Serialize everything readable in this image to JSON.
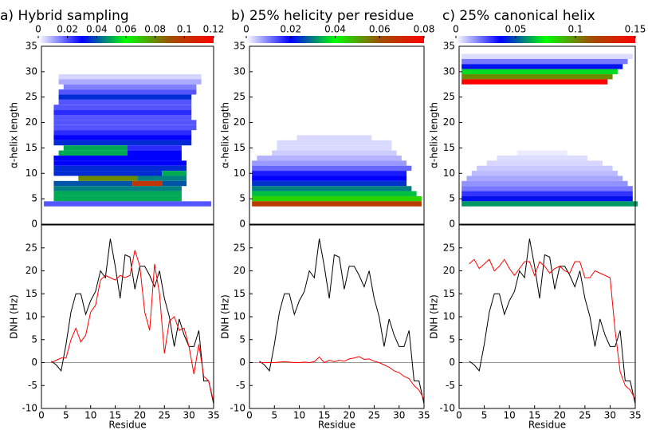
{
  "chart_data": [
    {
      "type": "heatmap",
      "title": "a)  Hybrid sampling",
      "ylabel": "α-helix length",
      "xlim": [
        0,
        35
      ],
      "ylim": [
        0,
        35
      ],
      "yticks": [
        0,
        5,
        10,
        15,
        20,
        25,
        30,
        35
      ],
      "clim": [
        0,
        0.12
      ],
      "cticks": [
        0,
        0.02,
        0.04,
        0.06,
        0.08,
        0.1,
        0.12
      ],
      "colormap": [
        "#ffffff",
        "#0000ff",
        "#00ff00",
        "#a05000",
        "#ff0000"
      ],
      "cells": [
        {
          "x": [
            4,
            32
          ],
          "y": 29,
          "value": 0.005
        },
        {
          "x": [
            4,
            32
          ],
          "y": 28,
          "value": 0.01
        },
        {
          "x": [
            5,
            31
          ],
          "y": 27,
          "value": 0.015
        },
        {
          "x": [
            4,
            31
          ],
          "y": 26,
          "value": 0.02
        },
        {
          "x": [
            4,
            30
          ],
          "y": 25,
          "value": 0.035
        },
        {
          "x": [
            4,
            30
          ],
          "y": 24,
          "value": 0.02
        },
        {
          "x": [
            3,
            30
          ],
          "y": 23,
          "value": 0.02
        },
        {
          "x": [
            3,
            30
          ],
          "y": 22,
          "value": 0.025
        },
        {
          "x": [
            3,
            30
          ],
          "y": 21,
          "value": 0.02
        },
        {
          "x": [
            3,
            31
          ],
          "y": 20,
          "value": 0.02
        },
        {
          "x": [
            3,
            31
          ],
          "y": 19,
          "value": 0.02
        },
        {
          "x": [
            3,
            30
          ],
          "y": 18,
          "value": 0.025
        },
        {
          "x": [
            3,
            30
          ],
          "y": 17,
          "value": 0.03
        },
        {
          "x": [
            3,
            30
          ],
          "y": 16,
          "value": 0.035
        },
        {
          "x": [
            5,
            17
          ],
          "y": 15,
          "value": 0.05
        },
        {
          "x": [
            18,
            28
          ],
          "y": 15,
          "value": 0.025
        },
        {
          "x": [
            4,
            17
          ],
          "y": 14,
          "value": 0.05
        },
        {
          "x": [
            18,
            28
          ],
          "y": 14,
          "value": 0.03
        },
        {
          "x": [
            3,
            28
          ],
          "y": 13,
          "value": 0.03
        },
        {
          "x": [
            3,
            29
          ],
          "y": 12,
          "value": 0.03
        },
        {
          "x": [
            3,
            29
          ],
          "y": 11,
          "value": 0.035
        },
        {
          "x": [
            3,
            24
          ],
          "y": 10,
          "value": 0.035
        },
        {
          "x": [
            25,
            29
          ],
          "y": 10,
          "value": 0.05
        },
        {
          "x": [
            8,
            19
          ],
          "y": 9,
          "value": 0.08
        },
        {
          "x": [
            20,
            29
          ],
          "y": 9,
          "value": 0.045
        },
        {
          "x": [
            3,
            18
          ],
          "y": 8,
          "value": 0.04
        },
        {
          "x": [
            19,
            24
          ],
          "y": 8,
          "value": 0.1
        },
        {
          "x": [
            25,
            29
          ],
          "y": 8,
          "value": 0.04
        },
        {
          "x": [
            3,
            28
          ],
          "y": 7,
          "value": 0.045
        },
        {
          "x": [
            3,
            28
          ],
          "y": 6,
          "value": 0.05
        },
        {
          "x": [
            3,
            28
          ],
          "y": 5,
          "value": 0.05
        },
        {
          "x": [
            1,
            34
          ],
          "y": 4,
          "value": 0.02
        }
      ]
    },
    {
      "type": "heatmap",
      "title": "b) 25% helicity per residue",
      "ylabel": "α-helix length",
      "xlim": [
        0,
        35
      ],
      "ylim": [
        0,
        35
      ],
      "yticks": [
        0,
        5,
        10,
        15,
        20,
        25,
        30,
        35
      ],
      "clim": [
        0,
        0.08
      ],
      "cticks": [
        0,
        0.02,
        0.04,
        0.06,
        0.08
      ],
      "colormap": [
        "#ffffff",
        "#0000ff",
        "#00ff00",
        "#a05000",
        "#ff0000"
      ],
      "cells": [
        {
          "x": [
            10,
            24
          ],
          "y": 17,
          "value": 0.003
        },
        {
          "x": [
            6,
            28
          ],
          "y": 16,
          "value": 0.003
        },
        {
          "x": [
            6,
            28
          ],
          "y": 15,
          "value": 0.003
        },
        {
          "x": [
            5,
            29
          ],
          "y": 14,
          "value": 0.004
        },
        {
          "x": [
            2,
            30
          ],
          "y": 13,
          "value": 0.006
        },
        {
          "x": [
            1,
            31
          ],
          "y": 12,
          "value": 0.008
        },
        {
          "x": [
            1,
            32
          ],
          "y": 11,
          "value": 0.012
        },
        {
          "x": [
            1,
            31
          ],
          "y": 10,
          "value": 0.018
        },
        {
          "x": [
            1,
            31
          ],
          "y": 9,
          "value": 0.02
        },
        {
          "x": [
            1,
            31
          ],
          "y": 8,
          "value": 0.024
        },
        {
          "x": [
            1,
            32
          ],
          "y": 7,
          "value": 0.03
        },
        {
          "x": [
            1,
            33
          ],
          "y": 6,
          "value": 0.035
        },
        {
          "x": [
            1,
            34
          ],
          "y": 5,
          "value": 0.045
        },
        {
          "x": [
            1,
            34
          ],
          "y": 4,
          "value": 0.065
        }
      ]
    },
    {
      "type": "heatmap",
      "title": "c)  25% canonical helix",
      "ylabel": "α-helix length",
      "xlim": [
        0,
        35
      ],
      "ylim": [
        0,
        35
      ],
      "yticks": [
        0,
        5,
        10,
        15,
        20,
        25,
        30,
        35
      ],
      "clim": [
        0,
        0.15
      ],
      "cticks": [
        0,
        0.05,
        0.1,
        0.15
      ],
      "colormap": [
        "#ffffff",
        "#0000ff",
        "#00ff00",
        "#a05000",
        "#ff0000"
      ],
      "cells": [
        {
          "x": [
            1,
            34
          ],
          "y": 33,
          "value": 0.005
        },
        {
          "x": [
            1,
            33
          ],
          "y": 32,
          "value": 0.02
        },
        {
          "x": [
            1,
            32
          ],
          "y": 31,
          "value": 0.04
        },
        {
          "x": [
            1,
            31
          ],
          "y": 30,
          "value": 0.07
        },
        {
          "x": [
            1,
            30
          ],
          "y": 29,
          "value": 0.1
        },
        {
          "x": [
            1,
            29
          ],
          "y": 28,
          "value": 0.15
        },
        {
          "x": [
            12,
            21
          ],
          "y": 14,
          "value": 0.003
        },
        {
          "x": [
            8,
            25
          ],
          "y": 13,
          "value": 0.005
        },
        {
          "x": [
            6,
            28
          ],
          "y": 12,
          "value": 0.006
        },
        {
          "x": [
            4,
            30
          ],
          "y": 11,
          "value": 0.008
        },
        {
          "x": [
            3,
            31
          ],
          "y": 10,
          "value": 0.01
        },
        {
          "x": [
            2,
            32
          ],
          "y": 9,
          "value": 0.013
        },
        {
          "x": [
            1,
            33
          ],
          "y": 8,
          "value": 0.016
        },
        {
          "x": [
            1,
            34
          ],
          "y": 7,
          "value": 0.02
        },
        {
          "x": [
            1,
            34
          ],
          "y": 6,
          "value": 0.03
        },
        {
          "x": [
            1,
            34
          ],
          "y": 5,
          "value": 0.04
        },
        {
          "x": [
            1,
            35
          ],
          "y": 4,
          "value": 0.06
        }
      ]
    },
    {
      "type": "line",
      "xlabel": "Residue",
      "ylabel": "DNH (Hz)",
      "xlim": [
        0,
        35
      ],
      "xticks": [
        0,
        5,
        10,
        15,
        20,
        25,
        30,
        35
      ],
      "ylim": [
        -10,
        30
      ],
      "yticks": [
        -10,
        -5,
        0,
        5,
        10,
        15,
        20,
        25
      ],
      "hline": 0,
      "x": [
        2,
        3,
        4,
        5,
        6,
        7,
        8,
        9,
        10,
        11,
        12,
        13,
        14,
        15,
        16,
        17,
        18,
        19,
        20,
        21,
        22,
        23,
        24,
        25,
        26,
        27,
        28,
        29,
        30,
        31,
        32,
        33,
        34,
        35
      ],
      "series": [
        {
          "color": "#000000",
          "values": [
            0.3,
            -0.5,
            -1.8,
            4,
            11,
            15,
            15,
            10.5,
            13.5,
            15.5,
            20,
            18.5,
            27,
            21,
            14,
            23.5,
            23,
            16,
            21,
            21,
            19,
            16.5,
            20,
            14,
            10,
            3.5,
            9.5,
            6,
            3.5,
            3.5,
            7,
            -4,
            -4,
            -9
          ]
        },
        {
          "color": "#ff0000",
          "values": [
            0,
            0.5,
            1,
            1,
            5,
            7.5,
            4.5,
            6,
            11,
            12.5,
            18,
            19,
            18.5,
            18,
            19,
            18.5,
            19,
            24.5,
            21,
            11,
            7,
            21.5,
            15,
            2,
            9,
            10,
            7,
            7.5,
            3.5,
            -2.5,
            4,
            -3,
            -4,
            -8.5
          ]
        }
      ]
    },
    {
      "type": "line",
      "xlabel": "Residue",
      "ylabel": "DNH (Hz)",
      "xlim": [
        0,
        35
      ],
      "xticks": [
        0,
        5,
        10,
        15,
        20,
        25,
        30,
        35
      ],
      "ylim": [
        -10,
        30
      ],
      "yticks": [
        -10,
        -5,
        0,
        5,
        10,
        15,
        20,
        25
      ],
      "hline": 0,
      "x": [
        2,
        3,
        4,
        5,
        6,
        7,
        8,
        9,
        10,
        11,
        12,
        13,
        14,
        15,
        16,
        17,
        18,
        19,
        20,
        21,
        22,
        23,
        24,
        25,
        26,
        27,
        28,
        29,
        30,
        31,
        32,
        33,
        34,
        35
      ],
      "series": [
        {
          "color": "#000000",
          "values": [
            0.3,
            -0.5,
            -1.8,
            4,
            11,
            15,
            15,
            10.5,
            13.5,
            15.5,
            20,
            18.5,
            27,
            21,
            14,
            23.5,
            23,
            16,
            21,
            21,
            19,
            16.5,
            20,
            14,
            10,
            3.5,
            9.5,
            6,
            3.5,
            3.5,
            7,
            -4,
            -4,
            -9
          ]
        },
        {
          "color": "#ff0000",
          "values": [
            0,
            0,
            0,
            0,
            0.1,
            0.2,
            0.1,
            0,
            0,
            0.1,
            0,
            0.2,
            1.2,
            0,
            0.5,
            0.2,
            0.5,
            0.3,
            0.8,
            1,
            1.3,
            0.7,
            0.8,
            0.3,
            0,
            -0.5,
            -1,
            -1.8,
            -2.2,
            -3,
            -3.5,
            -5,
            -6,
            -8
          ]
        }
      ]
    },
    {
      "type": "line",
      "xlabel": "Residue",
      "ylabel": "DNH (Hz)",
      "xlim": [
        0,
        35
      ],
      "xticks": [
        0,
        5,
        10,
        15,
        20,
        25,
        30,
        35
      ],
      "ylim": [
        -10,
        30
      ],
      "yticks": [
        -10,
        -5,
        0,
        5,
        10,
        15,
        20,
        25
      ],
      "hline": 0,
      "x": [
        2,
        3,
        4,
        5,
        6,
        7,
        8,
        9,
        10,
        11,
        12,
        13,
        14,
        15,
        16,
        17,
        18,
        19,
        20,
        21,
        22,
        23,
        24,
        25,
        26,
        27,
        28,
        29,
        30,
        31,
        32,
        33,
        34,
        35
      ],
      "series": [
        {
          "color": "#000000",
          "values": [
            0.3,
            -0.5,
            -1.8,
            4,
            11,
            15,
            15,
            10.5,
            13.5,
            15.5,
            20,
            18.5,
            27,
            21,
            14,
            23.5,
            23,
            16,
            21,
            21,
            19,
            16.5,
            20,
            14,
            10,
            3.5,
            9.5,
            6,
            3.5,
            3.5,
            7,
            -4,
            -4,
            -9
          ]
        },
        {
          "color": "#ff0000",
          "values": [
            21.5,
            22.5,
            20.5,
            21.5,
            22.5,
            20,
            21,
            22.5,
            20.5,
            19,
            20.5,
            22,
            22,
            19,
            22,
            21,
            19.5,
            20.5,
            21,
            20,
            19.5,
            22,
            22,
            18.5,
            18.5,
            20,
            19.5,
            19,
            18.5,
            7,
            -2,
            -5,
            -6,
            -8
          ]
        }
      ]
    }
  ]
}
